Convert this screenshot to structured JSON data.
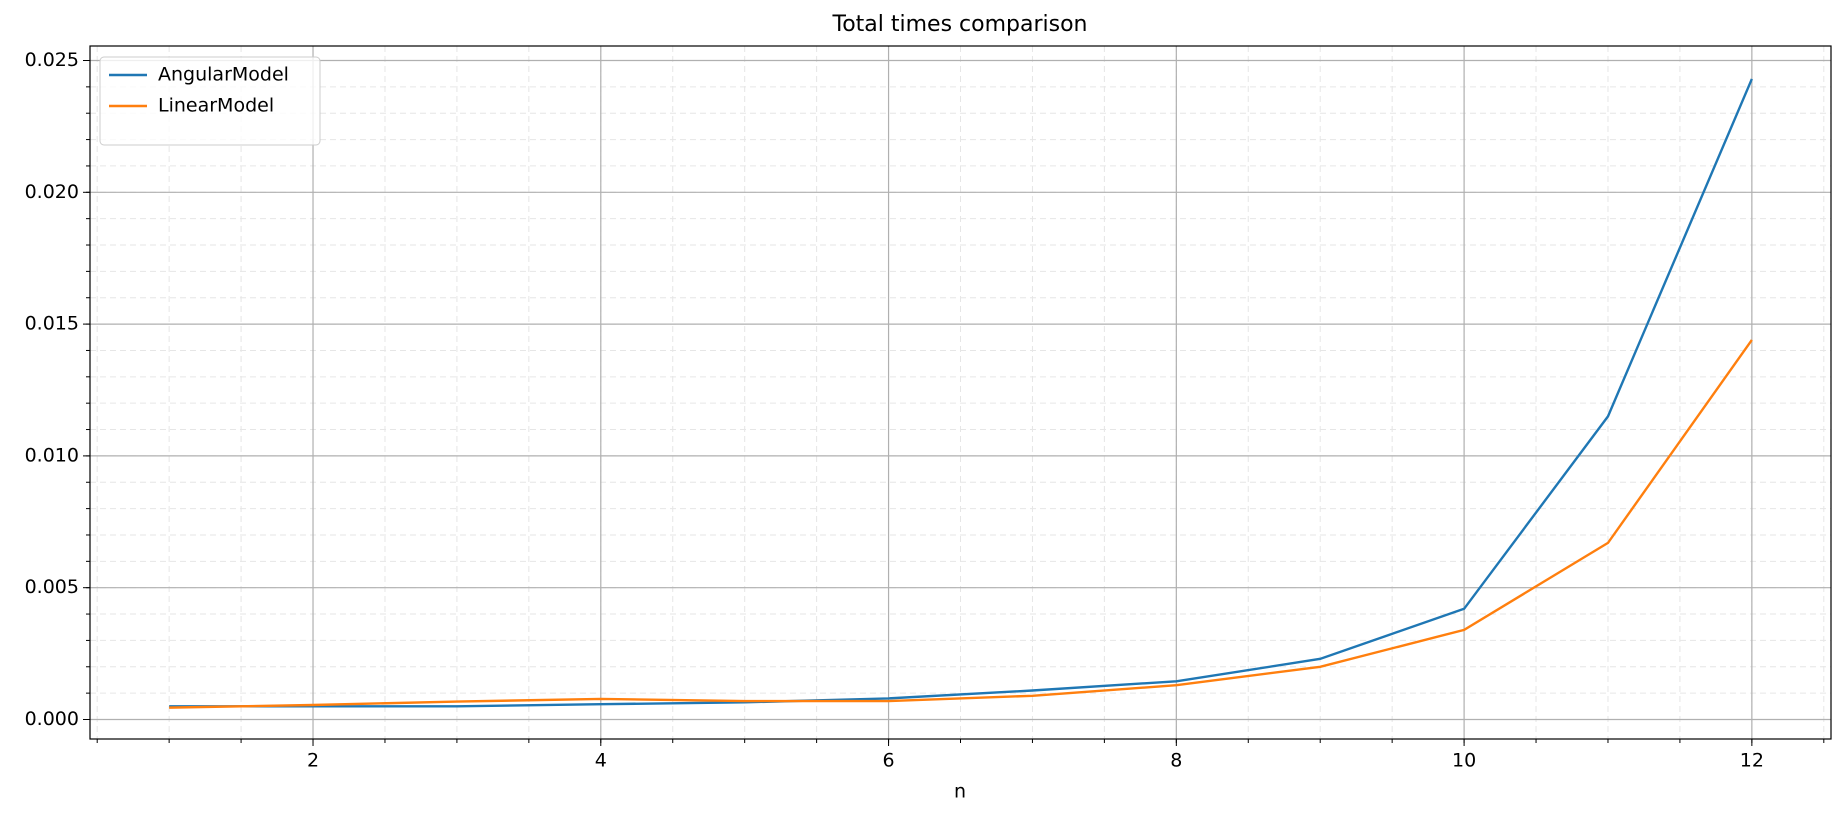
{
  "chart_data": {
    "type": "line",
    "title": "Total times comparison",
    "x_label": "n",
    "x": [
      1,
      2,
      3,
      4,
      5,
      6,
      7,
      8,
      9,
      10,
      11,
      12
    ],
    "series": [
      {
        "name": "AngularModel",
        "color": "#1f77b4",
        "values": [
          0.0005,
          0.0005,
          0.0005,
          0.00058,
          0.00065,
          0.0008,
          0.0011,
          0.00145,
          0.0023,
          0.0042,
          0.0115,
          0.0243
        ]
      },
      {
        "name": "LinearModel",
        "color": "#ff7f0e",
        "values": [
          0.00045,
          0.00055,
          0.00068,
          0.00078,
          0.0007,
          0.0007,
          0.0009,
          0.0013,
          0.002,
          0.0034,
          0.0067,
          0.0144
        ]
      }
    ],
    "xlim": [
      0.45,
      12.55
    ],
    "xticks": [
      2,
      4,
      6,
      8,
      10,
      12
    ],
    "ylim": [
      -0.00074,
      0.02555
    ],
    "yticks": [
      {
        "value": 0,
        "label": "0.000"
      },
      {
        "value": 0.005,
        "label": "0.005"
      },
      {
        "value": 0.01,
        "label": "0.010"
      },
      {
        "value": 0.015,
        "label": "0.015"
      },
      {
        "value": 0.02,
        "label": "0.020"
      },
      {
        "value": 0.025,
        "label": "0.025"
      }
    ],
    "grid": true,
    "legend": "upper left"
  }
}
